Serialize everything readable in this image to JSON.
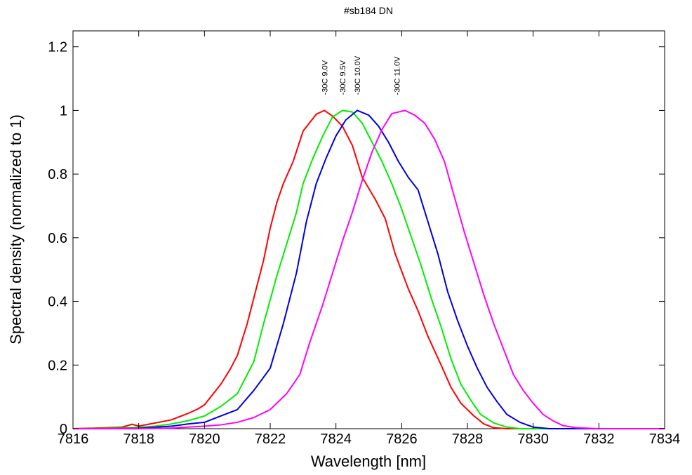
{
  "chart_data": {
    "type": "line",
    "title": "#sb184 DN",
    "xlabel": "Wavelength [nm]",
    "ylabel": "Spectral density (normalized to 1)",
    "xlim": [
      7816,
      7834
    ],
    "ylim": [
      0,
      1.25
    ],
    "xticks": [
      "7816",
      "7818",
      "7820",
      "7822",
      "7824",
      "7826",
      "7828",
      "7830",
      "7832",
      "7834"
    ],
    "yticks": [
      "0",
      "0.2",
      "0.4",
      "0.6",
      "0.8",
      "1",
      "1.2"
    ],
    "grid": false,
    "annotations": [
      {
        "text": "-30C 9.0V",
        "x": 7823.65
      },
      {
        "text": "-30C 9.5V",
        "x": 7824.2
      },
      {
        "text": "-30C 10.0V",
        "x": 7824.65
      },
      {
        "text": "-30C 11.0V",
        "x": 7825.85
      }
    ],
    "series": [
      {
        "color": "#ff0000",
        "points": [
          [
            7816,
            0
          ],
          [
            7817,
            0.003
          ],
          [
            7817.5,
            0.005
          ],
          [
            7817.8,
            0.014
          ],
          [
            7818,
            0.008
          ],
          [
            7818.5,
            0.018
          ],
          [
            7819,
            0.028
          ],
          [
            7819.5,
            0.048
          ],
          [
            7819.8,
            0.062
          ],
          [
            7820,
            0.075
          ],
          [
            7820.5,
            0.14
          ],
          [
            7820.8,
            0.19
          ],
          [
            7821,
            0.23
          ],
          [
            7821.3,
            0.33
          ],
          [
            7821.6,
            0.45
          ],
          [
            7821.8,
            0.53
          ],
          [
            7822,
            0.63
          ],
          [
            7822.2,
            0.71
          ],
          [
            7822.4,
            0.77
          ],
          [
            7822.7,
            0.84
          ],
          [
            7823,
            0.935
          ],
          [
            7823.4,
            0.988
          ],
          [
            7823.65,
            1.0
          ],
          [
            7823.9,
            0.982
          ],
          [
            7824.2,
            0.95
          ],
          [
            7824.5,
            0.89
          ],
          [
            7824.8,
            0.79
          ],
          [
            7825.2,
            0.72
          ],
          [
            7825.5,
            0.66
          ],
          [
            7825.8,
            0.55
          ],
          [
            7826.2,
            0.44
          ],
          [
            7826.5,
            0.37
          ],
          [
            7826.8,
            0.29
          ],
          [
            7827.2,
            0.2
          ],
          [
            7827.5,
            0.13
          ],
          [
            7827.8,
            0.08
          ],
          [
            7828.2,
            0.04
          ],
          [
            7828.5,
            0.015
          ],
          [
            7828.8,
            0.003
          ],
          [
            7829.2,
            0
          ],
          [
            7834,
            0
          ]
        ]
      },
      {
        "color": "#00ee00",
        "points": [
          [
            7816,
            0
          ],
          [
            7817,
            0.001
          ],
          [
            7818,
            0.004
          ],
          [
            7818.5,
            0.008
          ],
          [
            7819,
            0.015
          ],
          [
            7819.5,
            0.025
          ],
          [
            7820,
            0.04
          ],
          [
            7820.5,
            0.07
          ],
          [
            7821,
            0.11
          ],
          [
            7821.5,
            0.21
          ],
          [
            7821.8,
            0.33
          ],
          [
            7822.2,
            0.48
          ],
          [
            7822.5,
            0.58
          ],
          [
            7822.8,
            0.68
          ],
          [
            7823,
            0.77
          ],
          [
            7823.3,
            0.85
          ],
          [
            7823.6,
            0.92
          ],
          [
            7823.9,
            0.98
          ],
          [
            7824.2,
            1.0
          ],
          [
            7824.5,
            0.995
          ],
          [
            7824.8,
            0.96
          ],
          [
            7825.1,
            0.9
          ],
          [
            7825.4,
            0.84
          ],
          [
            7825.7,
            0.77
          ],
          [
            7826,
            0.69
          ],
          [
            7826.3,
            0.6
          ],
          [
            7826.6,
            0.51
          ],
          [
            7826.9,
            0.41
          ],
          [
            7827.2,
            0.32
          ],
          [
            7827.5,
            0.22
          ],
          [
            7827.8,
            0.14
          ],
          [
            7828.1,
            0.09
          ],
          [
            7828.4,
            0.045
          ],
          [
            7828.8,
            0.018
          ],
          [
            7829.2,
            0.005
          ],
          [
            7829.6,
            0
          ],
          [
            7834,
            0
          ]
        ]
      },
      {
        "color": "#0000dd",
        "points": [
          [
            7816,
            0
          ],
          [
            7817,
            0
          ],
          [
            7818,
            0.001
          ],
          [
            7819,
            0.008
          ],
          [
            7819.5,
            0.015
          ],
          [
            7820,
            0.02
          ],
          [
            7820.5,
            0.04
          ],
          [
            7821,
            0.06
          ],
          [
            7821.5,
            0.12
          ],
          [
            7822,
            0.19
          ],
          [
            7822.4,
            0.33
          ],
          [
            7822.8,
            0.49
          ],
          [
            7823.1,
            0.65
          ],
          [
            7823.4,
            0.77
          ],
          [
            7823.7,
            0.85
          ],
          [
            7824,
            0.92
          ],
          [
            7824.3,
            0.97
          ],
          [
            7824.65,
            1.0
          ],
          [
            7825,
            0.985
          ],
          [
            7825.3,
            0.95
          ],
          [
            7825.6,
            0.9
          ],
          [
            7825.9,
            0.84
          ],
          [
            7826.2,
            0.79
          ],
          [
            7826.5,
            0.75
          ],
          [
            7826.8,
            0.65
          ],
          [
            7827.1,
            0.55
          ],
          [
            7827.4,
            0.43
          ],
          [
            7827.7,
            0.34
          ],
          [
            7828,
            0.26
          ],
          [
            7828.3,
            0.19
          ],
          [
            7828.6,
            0.13
          ],
          [
            7828.9,
            0.085
          ],
          [
            7829.2,
            0.045
          ],
          [
            7829.6,
            0.02
          ],
          [
            7830,
            0.005
          ],
          [
            7830.5,
            0
          ],
          [
            7834,
            0
          ]
        ]
      },
      {
        "color": "#ff00ff",
        "points": [
          [
            7816,
            0
          ],
          [
            7818,
            0
          ],
          [
            7819,
            0.002
          ],
          [
            7820,
            0.008
          ],
          [
            7820.5,
            0.012
          ],
          [
            7821,
            0.02
          ],
          [
            7821.5,
            0.035
          ],
          [
            7822,
            0.06
          ],
          [
            7822.5,
            0.11
          ],
          [
            7822.9,
            0.17
          ],
          [
            7823.2,
            0.27
          ],
          [
            7823.6,
            0.39
          ],
          [
            7823.9,
            0.49
          ],
          [
            7824.2,
            0.59
          ],
          [
            7824.5,
            0.68
          ],
          [
            7824.8,
            0.78
          ],
          [
            7825.1,
            0.87
          ],
          [
            7825.4,
            0.94
          ],
          [
            7825.7,
            0.99
          ],
          [
            7826.1,
            1.0
          ],
          [
            7826.4,
            0.985
          ],
          [
            7826.7,
            0.96
          ],
          [
            7827,
            0.91
          ],
          [
            7827.3,
            0.84
          ],
          [
            7827.6,
            0.73
          ],
          [
            7827.9,
            0.62
          ],
          [
            7828.2,
            0.52
          ],
          [
            7828.5,
            0.42
          ],
          [
            7828.8,
            0.33
          ],
          [
            7829.1,
            0.25
          ],
          [
            7829.4,
            0.17
          ],
          [
            7829.7,
            0.12
          ],
          [
            7830,
            0.08
          ],
          [
            7830.3,
            0.045
          ],
          [
            7830.6,
            0.025
          ],
          [
            7830.9,
            0.01
          ],
          [
            7831.3,
            0.003
          ],
          [
            7832,
            0
          ],
          [
            7834,
            0
          ]
        ]
      }
    ]
  }
}
